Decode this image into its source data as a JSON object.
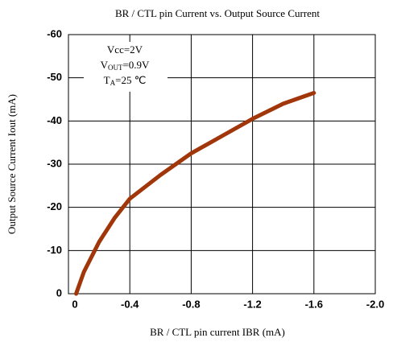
{
  "chart_data": {
    "type": "line",
    "title": "BR / CTL pin Current vs. Output Source Current",
    "x_label": "BR / CTL pin current IBR (mA)",
    "y_label": "Output Source Current Iout (mA)",
    "annotations": [
      [
        "Vcc=2V"
      ],
      [
        "V",
        "OUT",
        "=0.9V"
      ],
      [
        "T",
        "A",
        "=25 ℃"
      ]
    ],
    "x": [
      -0.05,
      -0.1,
      -0.2,
      -0.3,
      -0.4,
      -0.6,
      -0.8,
      -1.0,
      -1.2,
      -1.4,
      -1.6
    ],
    "series": [
      {
        "color": "#a0360a",
        "values": [
          0,
          -5,
          -12,
          -17.5,
          -22,
          -27.5,
          -32.5,
          -36.5,
          -40.5,
          -44,
          -46.5
        ]
      }
    ],
    "xlim": [
      0,
      -2.0
    ],
    "xticks": [
      0,
      -0.4,
      -0.8,
      -1.2,
      -1.6,
      {
        "value": -2,
        "label": "-2.0"
      }
    ],
    "ylim": [
      0,
      -60
    ],
    "yticks": [
      0,
      -10,
      -20,
      -30,
      -40,
      -50,
      -60
    ],
    "grid": true
  }
}
